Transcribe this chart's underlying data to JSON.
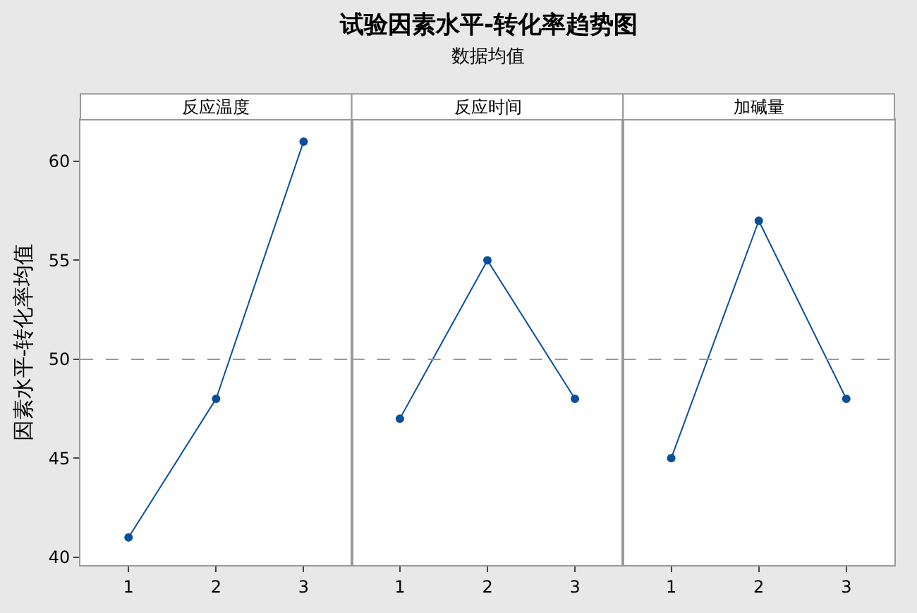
{
  "chart_data": [
    {
      "type": "line",
      "title": "反应温度",
      "ylabel": "因素水平-转化率均值",
      "annotations": [
        "试验因素水平-转化率趋势图",
        "数据均值"
      ],
      "categories": [
        "1",
        "2",
        "3"
      ],
      "series": [
        {
          "color": "#0b4f9c",
          "values": [
            41,
            48,
            61
          ]
        }
      ],
      "ylim": [
        39.6,
        62.1
      ],
      "yticks": [
        40,
        45,
        50,
        55,
        60
      ],
      "ref_lines": [
        {
          "axis": "y",
          "value": 50,
          "color": "#999999",
          "line_style": "dashed"
        }
      ],
      "marker": "circle",
      "line_style": "solid"
    },
    {
      "type": "line",
      "title": "反应时间",
      "categories": [
        "1",
        "2",
        "3"
      ],
      "series": [
        {
          "color": "#0b4f9c",
          "values": [
            47,
            55,
            48
          ]
        }
      ],
      "ylim": [
        39.6,
        62.1
      ],
      "ref_lines": [
        {
          "axis": "y",
          "value": 50,
          "color": "#999999",
          "line_style": "dashed"
        }
      ],
      "marker": "circle",
      "line_style": "solid",
      "tick_labels": "x"
    },
    {
      "type": "line",
      "title": "加碱量",
      "categories": [
        "1",
        "2",
        "3"
      ],
      "series": [
        {
          "color": "#0b4f9c",
          "values": [
            45,
            57,
            48
          ]
        }
      ],
      "ylim": [
        39.6,
        62.1
      ],
      "ref_lines": [
        {
          "axis": "y",
          "value": 50,
          "color": "#999999",
          "line_style": "dashed"
        }
      ],
      "marker": "circle",
      "line_style": "solid",
      "tick_labels": "x"
    }
  ]
}
